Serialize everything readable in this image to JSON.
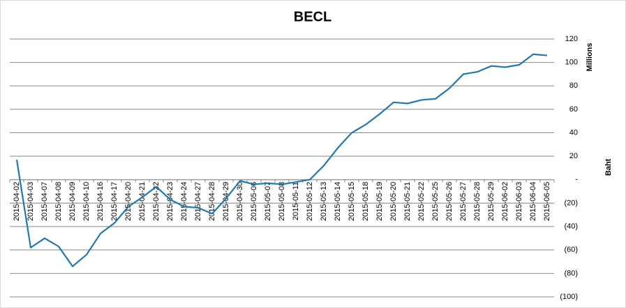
{
  "chart_data": {
    "type": "line",
    "title": "BECL",
    "y_label": "Millions",
    "y_label_2": "Baht",
    "categories": [
      "2015-04-02",
      "2015-04-03",
      "2015-04-07",
      "2015-04-08",
      "2015-04-09",
      "2015-04-10",
      "2015-04-16",
      "2015-04-17",
      "2015-04-20",
      "2015-04-21",
      "2015-04-22",
      "2015-04-23",
      "2015-04-24",
      "2015-04-27",
      "2015-04-28",
      "2015-04-29",
      "2015-04-30",
      "2015-05-06",
      "2015-05-07",
      "2015-05-08",
      "2015-05-11",
      "2015-05-12",
      "2015-05-13",
      "2015-05-14",
      "2015-05-15",
      "2015-05-18",
      "2015-05-19",
      "2015-05-20",
      "2015-05-21",
      "2015-05-22",
      "2015-05-25",
      "2015-05-26",
      "2015-05-27",
      "2015-05-28",
      "2015-05-29",
      "2015-06-02",
      "2015-06-03",
      "2015-06-04",
      "2015-06-05"
    ],
    "series": [
      {
        "name": "BECL",
        "color": "#1f77b4",
        "values": [
          17,
          -58,
          -50,
          -57,
          -74,
          -64,
          -46,
          -37,
          -23,
          -15,
          -6,
          -17,
          -23,
          -24,
          -29,
          -16,
          -1,
          -4,
          -3,
          -4,
          -2,
          0,
          12,
          27,
          40,
          47,
          56,
          66,
          65,
          68,
          69,
          78,
          90,
          92,
          97,
          96,
          98,
          107,
          106
        ]
      }
    ],
    "ylim": [
      -100,
      120
    ],
    "yticks": [
      120,
      100,
      80,
      60,
      40,
      20,
      {
        "value": 0,
        "label": "-"
      },
      {
        "value": -20,
        "label": "(20)"
      },
      {
        "value": -40,
        "label": "(40)"
      },
      {
        "value": -60,
        "label": "(60)"
      },
      {
        "value": -80,
        "label": "(80)"
      },
      {
        "value": -100,
        "label": "(100)"
      }
    ],
    "grid": true,
    "y_axis_side": "right"
  }
}
